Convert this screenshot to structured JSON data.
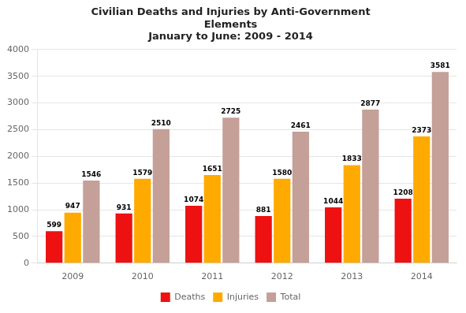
{
  "chart_data": {
    "type": "bar",
    "title": "Civilian Deaths and Injuries by Anti-Government\nElements\nJanuary to June: 2009 - 2014",
    "categories": [
      "2009",
      "2010",
      "2011",
      "2012",
      "2013",
      "2014"
    ],
    "series": [
      {
        "name": "Deaths",
        "color": "#EE1111",
        "values": [
          599,
          931,
          1074,
          881,
          1044,
          1208
        ]
      },
      {
        "name": "Injuries",
        "color": "#FFAA00",
        "values": [
          947,
          1579,
          1651,
          1580,
          1833,
          2373
        ]
      },
      {
        "name": "Total",
        "color": "#C4A098",
        "values": [
          1546,
          2510,
          2725,
          2461,
          2877,
          3581
        ]
      }
    ],
    "ylim": [
      0,
      4000
    ],
    "yticks": [
      0,
      500,
      1000,
      1500,
      2000,
      2500,
      3000,
      3500,
      4000
    ],
    "grid": true,
    "legend": "bottom",
    "data_labels": true
  }
}
